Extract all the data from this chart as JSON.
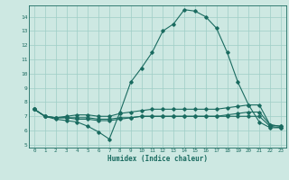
{
  "title": "",
  "xlabel": "Humidex (Indice chaleur)",
  "ylabel": "",
  "x_ticks": [
    0,
    1,
    2,
    3,
    4,
    5,
    6,
    7,
    8,
    9,
    10,
    11,
    12,
    13,
    14,
    15,
    16,
    17,
    18,
    19,
    20,
    21,
    22,
    23
  ],
  "y_ticks": [
    5,
    6,
    7,
    8,
    9,
    10,
    11,
    12,
    13,
    14
  ],
  "ylim": [
    4.8,
    14.8
  ],
  "xlim": [
    -0.5,
    23.5
  ],
  "bg_color": "#cde8e2",
  "grid_color": "#9ecec6",
  "line_color": "#1a6b60",
  "curves": [
    [
      7.5,
      7.0,
      6.8,
      6.7,
      6.6,
      6.3,
      5.9,
      5.4,
      7.3,
      9.4,
      10.4,
      11.5,
      13.0,
      13.5,
      14.5,
      14.4,
      14.0,
      13.2,
      11.5,
      9.4,
      7.8,
      6.6,
      6.2,
      6.2
    ],
    [
      7.5,
      7.0,
      6.9,
      7.0,
      7.1,
      7.1,
      7.0,
      7.0,
      7.2,
      7.3,
      7.4,
      7.5,
      7.5,
      7.5,
      7.5,
      7.5,
      7.5,
      7.5,
      7.6,
      7.7,
      7.8,
      7.8,
      6.4,
      6.3
    ],
    [
      7.5,
      7.0,
      6.9,
      6.9,
      6.9,
      6.9,
      6.8,
      6.8,
      6.9,
      6.9,
      7.0,
      7.0,
      7.0,
      7.0,
      7.0,
      7.0,
      7.0,
      7.0,
      7.1,
      7.2,
      7.3,
      7.3,
      6.4,
      6.3
    ],
    [
      7.5,
      7.0,
      6.9,
      6.9,
      6.8,
      6.8,
      6.7,
      6.7,
      6.8,
      6.9,
      7.0,
      7.0,
      7.0,
      7.0,
      7.0,
      7.0,
      7.0,
      7.0,
      7.0,
      7.0,
      7.0,
      7.0,
      6.3,
      6.2
    ]
  ]
}
